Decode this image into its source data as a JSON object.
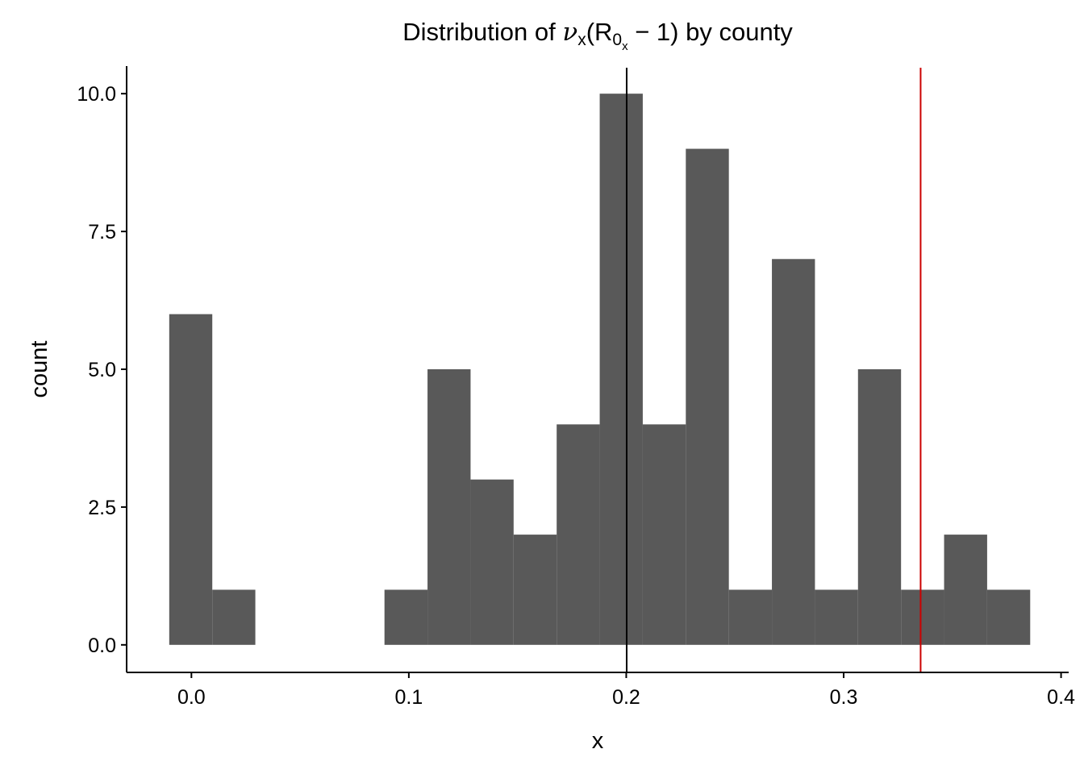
{
  "chart_data": {
    "type": "bar",
    "title": {
      "prefix": "Distribution of ",
      "nu": "ν",
      "nu_sub": "x",
      "open_paren": "(",
      "r": "R",
      "r_sub": "0",
      "r_subsub": "x",
      "minus_one": " − 1)",
      "suffix": " by county"
    },
    "xlabel": "x",
    "ylabel": "count",
    "xlim": [
      -0.0298,
      0.4035
    ],
    "ylim": [
      -0.5,
      10.5
    ],
    "x_ticks": [
      0.0,
      0.1,
      0.2,
      0.3,
      0.4
    ],
    "x_tick_labels": [
      "0.0",
      "0.1",
      "0.2",
      "0.3",
      "0.4"
    ],
    "y_ticks": [
      0.0,
      2.5,
      5.0,
      7.5,
      10.0
    ],
    "y_tick_labels": [
      "0.0",
      "2.5",
      "5.0",
      "7.5",
      "10.0"
    ],
    "bin_width": 0.0198,
    "bins": [
      {
        "x0": -0.0102,
        "x1": 0.0096,
        "count": 6
      },
      {
        "x0": 0.0096,
        "x1": 0.0294,
        "count": 1
      },
      {
        "x0": 0.0294,
        "x1": 0.0492,
        "count": 0
      },
      {
        "x0": 0.0492,
        "x1": 0.069,
        "count": 0
      },
      {
        "x0": 0.069,
        "x1": 0.0888,
        "count": 0
      },
      {
        "x0": 0.0888,
        "x1": 0.1086,
        "count": 1
      },
      {
        "x0": 0.1086,
        "x1": 0.1284,
        "count": 5
      },
      {
        "x0": 0.1284,
        "x1": 0.1482,
        "count": 3
      },
      {
        "x0": 0.1482,
        "x1": 0.168,
        "count": 2
      },
      {
        "x0": 0.168,
        "x1": 0.1878,
        "count": 4
      },
      {
        "x0": 0.1878,
        "x1": 0.2076,
        "count": 10
      },
      {
        "x0": 0.2076,
        "x1": 0.2274,
        "count": 4
      },
      {
        "x0": 0.2274,
        "x1": 0.2472,
        "count": 9
      },
      {
        "x0": 0.2472,
        "x1": 0.267,
        "count": 1
      },
      {
        "x0": 0.267,
        "x1": 0.2868,
        "count": 7
      },
      {
        "x0": 0.2868,
        "x1": 0.3066,
        "count": 1
      },
      {
        "x0": 0.3066,
        "x1": 0.3264,
        "count": 5
      },
      {
        "x0": 0.3264,
        "x1": 0.3462,
        "count": 1
      },
      {
        "x0": 0.3462,
        "x1": 0.366,
        "count": 2
      },
      {
        "x0": 0.366,
        "x1": 0.3858,
        "count": 1
      }
    ],
    "reference_lines": [
      {
        "x": 0.2002,
        "color": "#000000"
      },
      {
        "x": 0.3354,
        "color": "#cc0000"
      }
    ],
    "bar_color": "#595959",
    "grid": false,
    "legend": "none"
  }
}
